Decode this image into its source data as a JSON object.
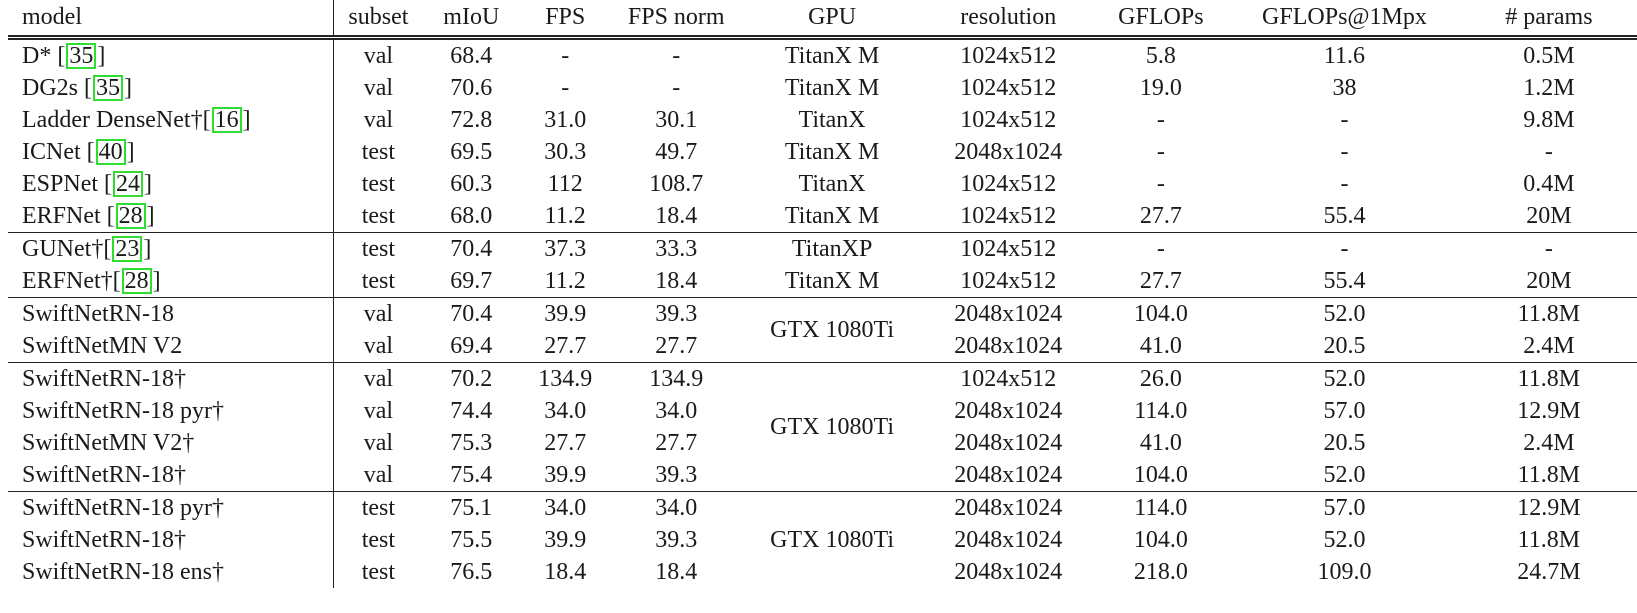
{
  "table": {
    "headers": [
      "model",
      "subset",
      "mIoU",
      "FPS",
      "FPS norm",
      "GPU",
      "resolution",
      "GFLOPs",
      "GFLOPs@1Mpx",
      "# params"
    ],
    "groups": [
      {
        "rows": [
          {
            "model": "D* [",
            "cite": "35",
            "suffix": "]",
            "subset": "val",
            "miou": "68.4",
            "fps": "-",
            "fps_norm": "-",
            "gpu": "TitanX M",
            "resolution": "1024x512",
            "gflops": "5.8",
            "gflops_1mpx": "11.6",
            "params": "0.5M"
          },
          {
            "model": "DG2s [",
            "cite": "35",
            "suffix": "]",
            "subset": "val",
            "miou": "70.6",
            "fps": "-",
            "fps_norm": "-",
            "gpu": "TitanX M",
            "resolution": "1024x512",
            "gflops": "19.0",
            "gflops_1mpx": "38",
            "params": "1.2M"
          },
          {
            "model": "Ladder DenseNet†[",
            "cite": "16",
            "suffix": "]",
            "subset": "val",
            "miou": "72.8",
            "fps": "31.0",
            "fps_norm": "30.1",
            "gpu": "TitanX",
            "resolution": "1024x512",
            "gflops": "-",
            "gflops_1mpx": "-",
            "params": "9.8M"
          },
          {
            "model": "ICNet [",
            "cite": "40",
            "suffix": "]",
            "subset": "test",
            "miou": "69.5",
            "fps": "30.3",
            "fps_norm": "49.7",
            "gpu": "TitanX M",
            "resolution": "2048x1024",
            "gflops": "-",
            "gflops_1mpx": "-",
            "params": "-"
          },
          {
            "model": "ESPNet [",
            "cite": "24",
            "suffix": "]",
            "subset": "test",
            "miou": "60.3",
            "fps": "112",
            "fps_norm": "108.7",
            "gpu": "TitanX",
            "resolution": "1024x512",
            "gflops": "-",
            "gflops_1mpx": "-",
            "params": "0.4M"
          },
          {
            "model": "ERFNet [",
            "cite": "28",
            "suffix": "]",
            "subset": "test",
            "miou": "68.0",
            "fps": "11.2",
            "fps_norm": "18.4",
            "gpu": "TitanX M",
            "resolution": "1024x512",
            "gflops": "27.7",
            "gflops_1mpx": "55.4",
            "params": "20M"
          }
        ]
      },
      {
        "rows": [
          {
            "model": "GUNet†[",
            "cite": "23",
            "suffix": "]",
            "subset": "test",
            "miou": "70.4",
            "fps": "37.3",
            "fps_norm": "33.3",
            "gpu": "TitanXP",
            "resolution": "1024x512",
            "gflops": "-",
            "gflops_1mpx": "-",
            "params": "-"
          },
          {
            "model": "ERFNet†[",
            "cite": "28",
            "suffix": "]",
            "subset": "test",
            "miou": "69.7",
            "fps": "11.2",
            "fps_norm": "18.4",
            "gpu": "TitanX M",
            "resolution": "1024x512",
            "gflops": "27.7",
            "gflops_1mpx": "55.4",
            "params": "20M"
          }
        ]
      },
      {
        "gpu_merged": "GTX 1080Ti",
        "rows": [
          {
            "model": "SwiftNetRN-18",
            "subset": "val",
            "miou": "70.4",
            "fps": "39.9",
            "fps_norm": "39.3",
            "resolution": "2048x1024",
            "gflops": "104.0",
            "gflops_1mpx": "52.0",
            "params": "11.8M"
          },
          {
            "model": "SwiftNetMN V2",
            "subset": "val",
            "miou": "69.4",
            "fps": "27.7",
            "fps_norm": "27.7",
            "resolution": "2048x1024",
            "gflops": "41.0",
            "gflops_1mpx": "20.5",
            "params": "2.4M"
          }
        ]
      },
      {
        "gpu_merged": "GTX 1080Ti",
        "rows": [
          {
            "model": "SwiftNetRN-18†",
            "subset": "val",
            "miou": "70.2",
            "fps": "134.9",
            "fps_norm": "134.9",
            "resolution": "1024x512",
            "gflops": "26.0",
            "gflops_1mpx": "52.0",
            "params": "11.8M"
          },
          {
            "model": "SwiftNetRN-18 pyr†",
            "subset": "val",
            "miou": "74.4",
            "fps": "34.0",
            "fps_norm": "34.0",
            "resolution": "2048x1024",
            "gflops": "114.0",
            "gflops_1mpx": "57.0",
            "params": "12.9M"
          },
          {
            "model": "SwiftNetMN V2†",
            "subset": "val",
            "miou": "75.3",
            "fps": "27.7",
            "fps_norm": "27.7",
            "resolution": "2048x1024",
            "gflops": "41.0",
            "gflops_1mpx": "20.5",
            "params": "2.4M"
          },
          {
            "model": "SwiftNetRN-18†",
            "subset": "val",
            "miou": "75.4",
            "fps": "39.9",
            "fps_norm": "39.3",
            "resolution": "2048x1024",
            "gflops": "104.0",
            "gflops_1mpx": "52.0",
            "params": "11.8M"
          }
        ]
      },
      {
        "gpu_merged": "GTX 1080Ti",
        "rows": [
          {
            "model": "SwiftNetRN-18 pyr†",
            "subset": "test",
            "miou": "75.1",
            "fps": "34.0",
            "fps_norm": "34.0",
            "resolution": "2048x1024",
            "gflops": "114.0",
            "gflops_1mpx": "57.0",
            "params": "12.9M"
          },
          {
            "model": "SwiftNetRN-18†",
            "subset": "test",
            "miou": "75.5",
            "miou_bold": true,
            "fps": "39.9",
            "fps_norm": "39.3",
            "resolution": "2048x1024",
            "gflops": "104.0",
            "gflops_1mpx": "52.0",
            "params": "11.8M"
          },
          {
            "model": "SwiftNetRN-18 ens†",
            "subset": "test",
            "miou": "76.5",
            "miou_bold": true,
            "fps": "18.4",
            "fps_norm": "18.4",
            "resolution": "2048x1024",
            "gflops": "218.0",
            "gflops_1mpx": "109.0",
            "params": "24.7M"
          }
        ]
      }
    ]
  },
  "colors": {
    "citation_box": "#2fdc2f",
    "text": "#1a1a1a",
    "rule": "#222222"
  }
}
